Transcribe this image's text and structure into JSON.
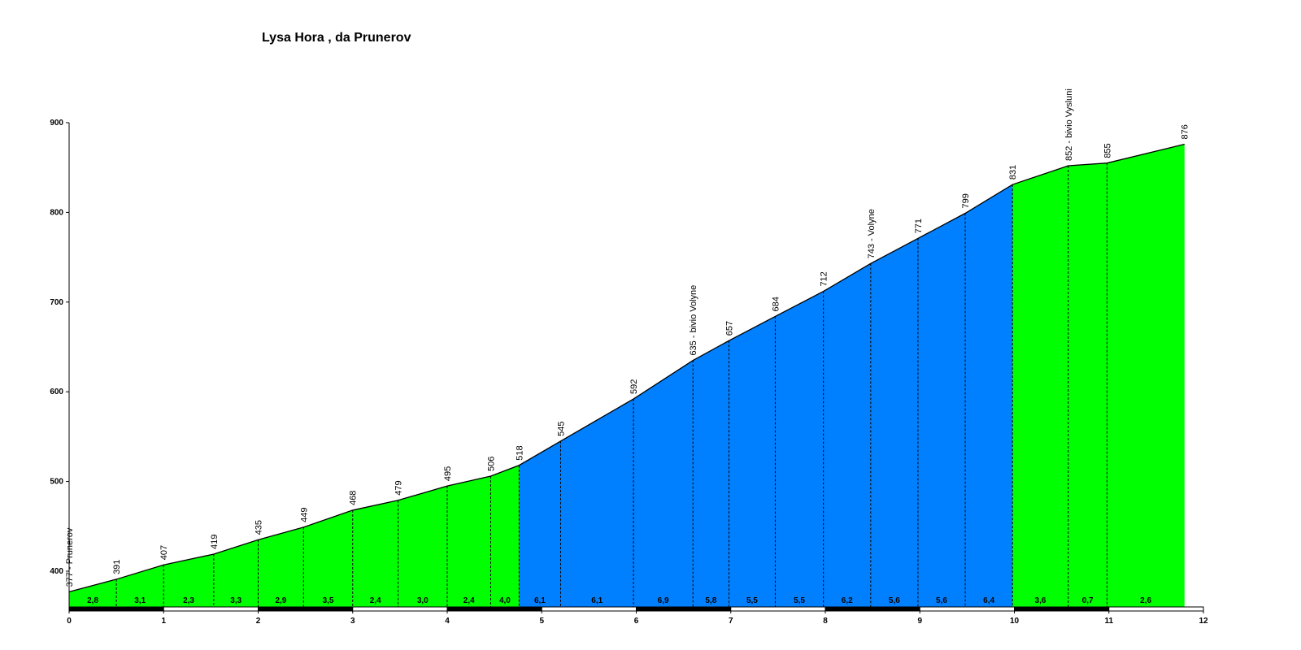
{
  "chart_data": {
    "type": "area",
    "title": "Lysa Hora , da Prunerov",
    "xlabel": "",
    "ylabel": "",
    "xlim": [
      0,
      12
    ],
    "ylim": [
      355,
      900
    ],
    "x_ticks": [
      "0",
      "1",
      "2",
      "3",
      "4",
      "5",
      "6",
      "7",
      "8",
      "9",
      "10",
      "11",
      "12"
    ],
    "y_ticks": [
      "400",
      "500",
      "600",
      "700",
      "800",
      "900"
    ],
    "y_tick_values": [
      400,
      500,
      600,
      700,
      800,
      900
    ],
    "grid": false,
    "colors": {
      "easy": "#00ff00",
      "steep": "#0080ff",
      "line": "#000000"
    },
    "points": [
      {
        "x": 0.0,
        "y": 377,
        "label": "377 - Prunerov"
      },
      {
        "x": 0.5,
        "y": 391,
        "label": "391"
      },
      {
        "x": 1.0,
        "y": 407,
        "label": "407"
      },
      {
        "x": 1.53,
        "y": 419,
        "label": "419"
      },
      {
        "x": 2.0,
        "y": 435,
        "label": "435"
      },
      {
        "x": 2.48,
        "y": 449,
        "label": "449"
      },
      {
        "x": 3.0,
        "y": 468,
        "label": "468"
      },
      {
        "x": 3.48,
        "y": 479,
        "label": "479"
      },
      {
        "x": 4.0,
        "y": 495,
        "label": "495"
      },
      {
        "x": 4.46,
        "y": 506,
        "label": "506"
      },
      {
        "x": 4.76,
        "y": 518,
        "label": "518"
      },
      {
        "x": 5.2,
        "y": 545,
        "label": "545"
      },
      {
        "x": 5.97,
        "y": 592,
        "label": "592"
      },
      {
        "x": 6.6,
        "y": 635,
        "label": "635 - bivio Volyne"
      },
      {
        "x": 6.98,
        "y": 657,
        "label": "657"
      },
      {
        "x": 7.47,
        "y": 684,
        "label": "684"
      },
      {
        "x": 7.98,
        "y": 712,
        "label": "712"
      },
      {
        "x": 8.48,
        "y": 743,
        "label": "743 - Volyne"
      },
      {
        "x": 8.98,
        "y": 771,
        "label": "771"
      },
      {
        "x": 9.48,
        "y": 799,
        "label": "799"
      },
      {
        "x": 9.98,
        "y": 831,
        "label": "831"
      },
      {
        "x": 10.57,
        "y": 852,
        "label": "852 - bivio Vysluni"
      },
      {
        "x": 10.98,
        "y": 855,
        "label": "855"
      },
      {
        "x": 11.8,
        "y": 876,
        "label": "876"
      }
    ],
    "segments": [
      {
        "from": 0.0,
        "to": 0.5,
        "grade": "2,8",
        "color": "easy"
      },
      {
        "from": 0.5,
        "to": 1.0,
        "grade": "3,1",
        "color": "easy"
      },
      {
        "from": 1.0,
        "to": 1.53,
        "grade": "2,3",
        "color": "easy"
      },
      {
        "from": 1.53,
        "to": 2.0,
        "grade": "3,3",
        "color": "easy"
      },
      {
        "from": 2.0,
        "to": 2.48,
        "grade": "2,9",
        "color": "easy"
      },
      {
        "from": 2.48,
        "to": 3.0,
        "grade": "3,5",
        "color": "easy"
      },
      {
        "from": 3.0,
        "to": 3.48,
        "grade": "2,4",
        "color": "easy"
      },
      {
        "from": 3.48,
        "to": 4.0,
        "grade": "3,0",
        "color": "easy"
      },
      {
        "from": 4.0,
        "to": 4.46,
        "grade": "2,4",
        "color": "easy"
      },
      {
        "from": 4.46,
        "to": 4.76,
        "grade": "4,0",
        "color": "easy"
      },
      {
        "from": 4.76,
        "to": 5.2,
        "grade": "6,1",
        "color": "steep"
      },
      {
        "from": 5.2,
        "to": 5.97,
        "grade": "6,1",
        "color": "steep"
      },
      {
        "from": 5.97,
        "to": 6.6,
        "grade": "6,9",
        "color": "steep"
      },
      {
        "from": 6.6,
        "to": 6.98,
        "grade": "5,8",
        "color": "steep"
      },
      {
        "from": 6.98,
        "to": 7.47,
        "grade": "5,5",
        "color": "steep"
      },
      {
        "from": 7.47,
        "to": 7.98,
        "grade": "5,5",
        "color": "steep"
      },
      {
        "from": 7.98,
        "to": 8.48,
        "grade": "6,2",
        "color": "steep"
      },
      {
        "from": 8.48,
        "to": 8.98,
        "grade": "5,6",
        "color": "steep"
      },
      {
        "from": 8.98,
        "to": 9.48,
        "grade": "5,6",
        "color": "steep"
      },
      {
        "from": 9.48,
        "to": 9.98,
        "grade": "6,4",
        "color": "steep"
      },
      {
        "from": 9.98,
        "to": 10.57,
        "grade": "3,6",
        "color": "easy"
      },
      {
        "from": 10.57,
        "to": 10.98,
        "grade": "0,7",
        "color": "easy"
      },
      {
        "from": 10.98,
        "to": 11.8,
        "grade": "2,6",
        "color": "easy"
      }
    ]
  }
}
